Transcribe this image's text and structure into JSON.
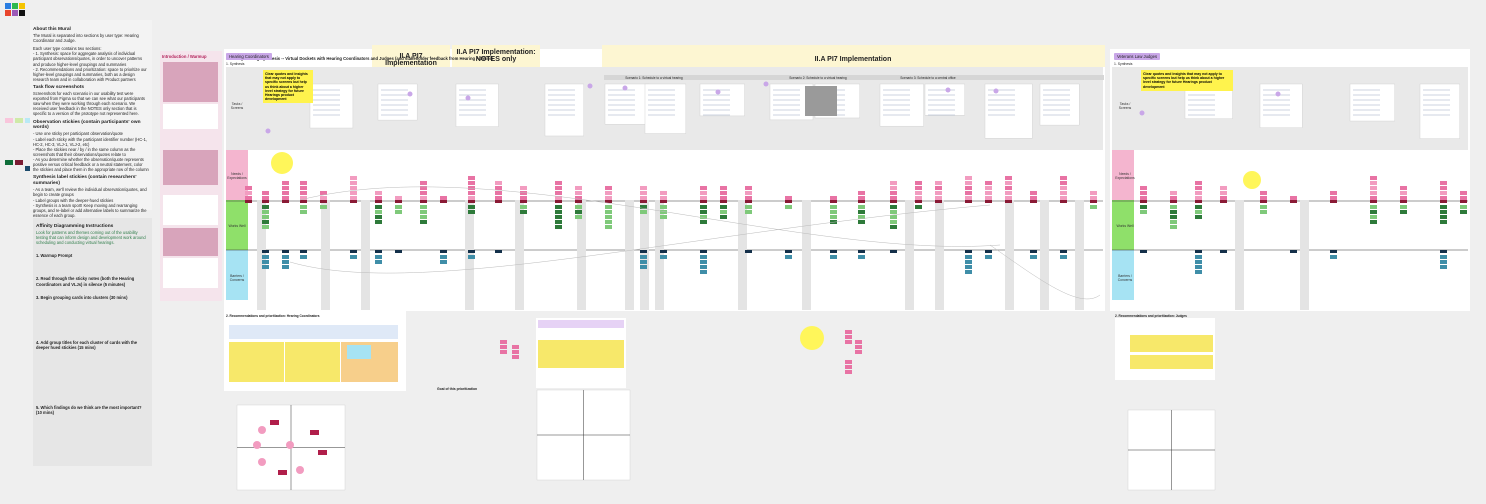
{
  "board_title": "Usability Testing Synthesis -- Virtual Dockets with Hearing Coordinators and Judges (and stakeholder feedback from Hearing Admins)",
  "about": {
    "heading": "About this Mural",
    "lines": [
      "The Mural is separated into sections by user type: Hearing Coordinator and Judge.",
      "Each user type contains two sections:",
      "- 1. Synthesis: space for aggregate analysis of individual participant observations/quotes, in order to uncover patterns and produce higher-level groupings and summaries",
      "- 2. Recommendations and prioritization: space to prioritize our higher-level groupings and summaries, both as a design research team and in collaboration with Product partners"
    ]
  },
  "task_flow": {
    "heading": "Task flow screenshots",
    "text": "Screenshots for each scenario in our usability test were exported from Figma so that we can see what our participants saw when they were working through each scenario. We received user feedback in the NOTES only section that is specific to a version of the prototype not represented here."
  },
  "observation": {
    "heading": "Observation stickies (contain participants' own words)",
    "lines": [
      "- Use one sticky per participant observation/quote",
      "- Label each sticky with the participant identifier number (HC-1, HC-2, HC-3, VLJ-1, VLJ-2, etc)",
      "- Place the stickies near / by / in the same column as the screenshots that their observations/quotes relate to",
      "- As you determine whether the observation/quote represents positive versus critical feedback or a neutral statement, color the stickies and place them in the appropriate row of the column"
    ]
  },
  "synthesis": {
    "heading": "Synthesis label stickies (contain researchers' summaries)",
    "lines": [
      "- As a team, we'll review the individual observation/quotes, and begin to create groups",
      "- Label groups with the deeper-hued stickies",
      "- Synthesis is a team sport! Keep moving and rearranging groups, and re-label or add alternative labels to summarize the essence of each group."
    ]
  },
  "instructions": {
    "heading": "Affinity Diagramming Instructions",
    "intro": "Look for patterns and themes coming out of the usability testing that can inform design and development work around scheduling and conducting virtual hearings.",
    "steps": [
      "1. Warmup Prompt",
      "2. Read through the sticky notes (both the Hearing Coordinators and VLJs) in silence (5 minutes)",
      "3. Begin grouping cards into clusters (30 mins)",
      "4. Add group titles for each cluster of cards with the deeper hued stickies (15 mins)",
      "5. Which findings do we think are the most important? (10 mins)"
    ]
  },
  "intro": {
    "title": "Introduction / Warmup"
  },
  "hearing_coordinators": {
    "tag": "Hearing Coordinators",
    "section": "1. Synthesis",
    "rows": [
      "Tasks / Screens",
      "Needs / Expectations",
      "Works Well",
      "Barriers / Concerns"
    ],
    "callout": "Clear quotes and insights that may not apply to specific screens but help us think about a higher level strategy for future Hearings product development",
    "columns": [
      "II.A PI7 Implementation",
      "II.A PI7 Implementation: NOTES only",
      "II.A PI7 Implementation"
    ],
    "scenarios": [
      "Scenario 1: Schedule to a virtual hearing",
      "Scenario 2: Schedule to a virtual hearing",
      "Scenario 3: Schedule to a central office"
    ]
  },
  "judges": {
    "tag": "Veterans Law Judges",
    "section": "1. Synthesis",
    "rows": [
      "Tasks / Screens",
      "Needs / Expectations",
      "Works Well",
      "Barriers / Concerns"
    ],
    "callout": "Clear quotes and insights that may not apply to specific screens but help us think about a higher level strategy for future Hearings product development"
  },
  "recommendations": {
    "hc_title": "2. Recommendations and prioritization: Hearing Coordinators",
    "vlj_title": "2. Recommendations and prioritization: Judges",
    "notes_heading": "Goal of this prioritization"
  }
}
